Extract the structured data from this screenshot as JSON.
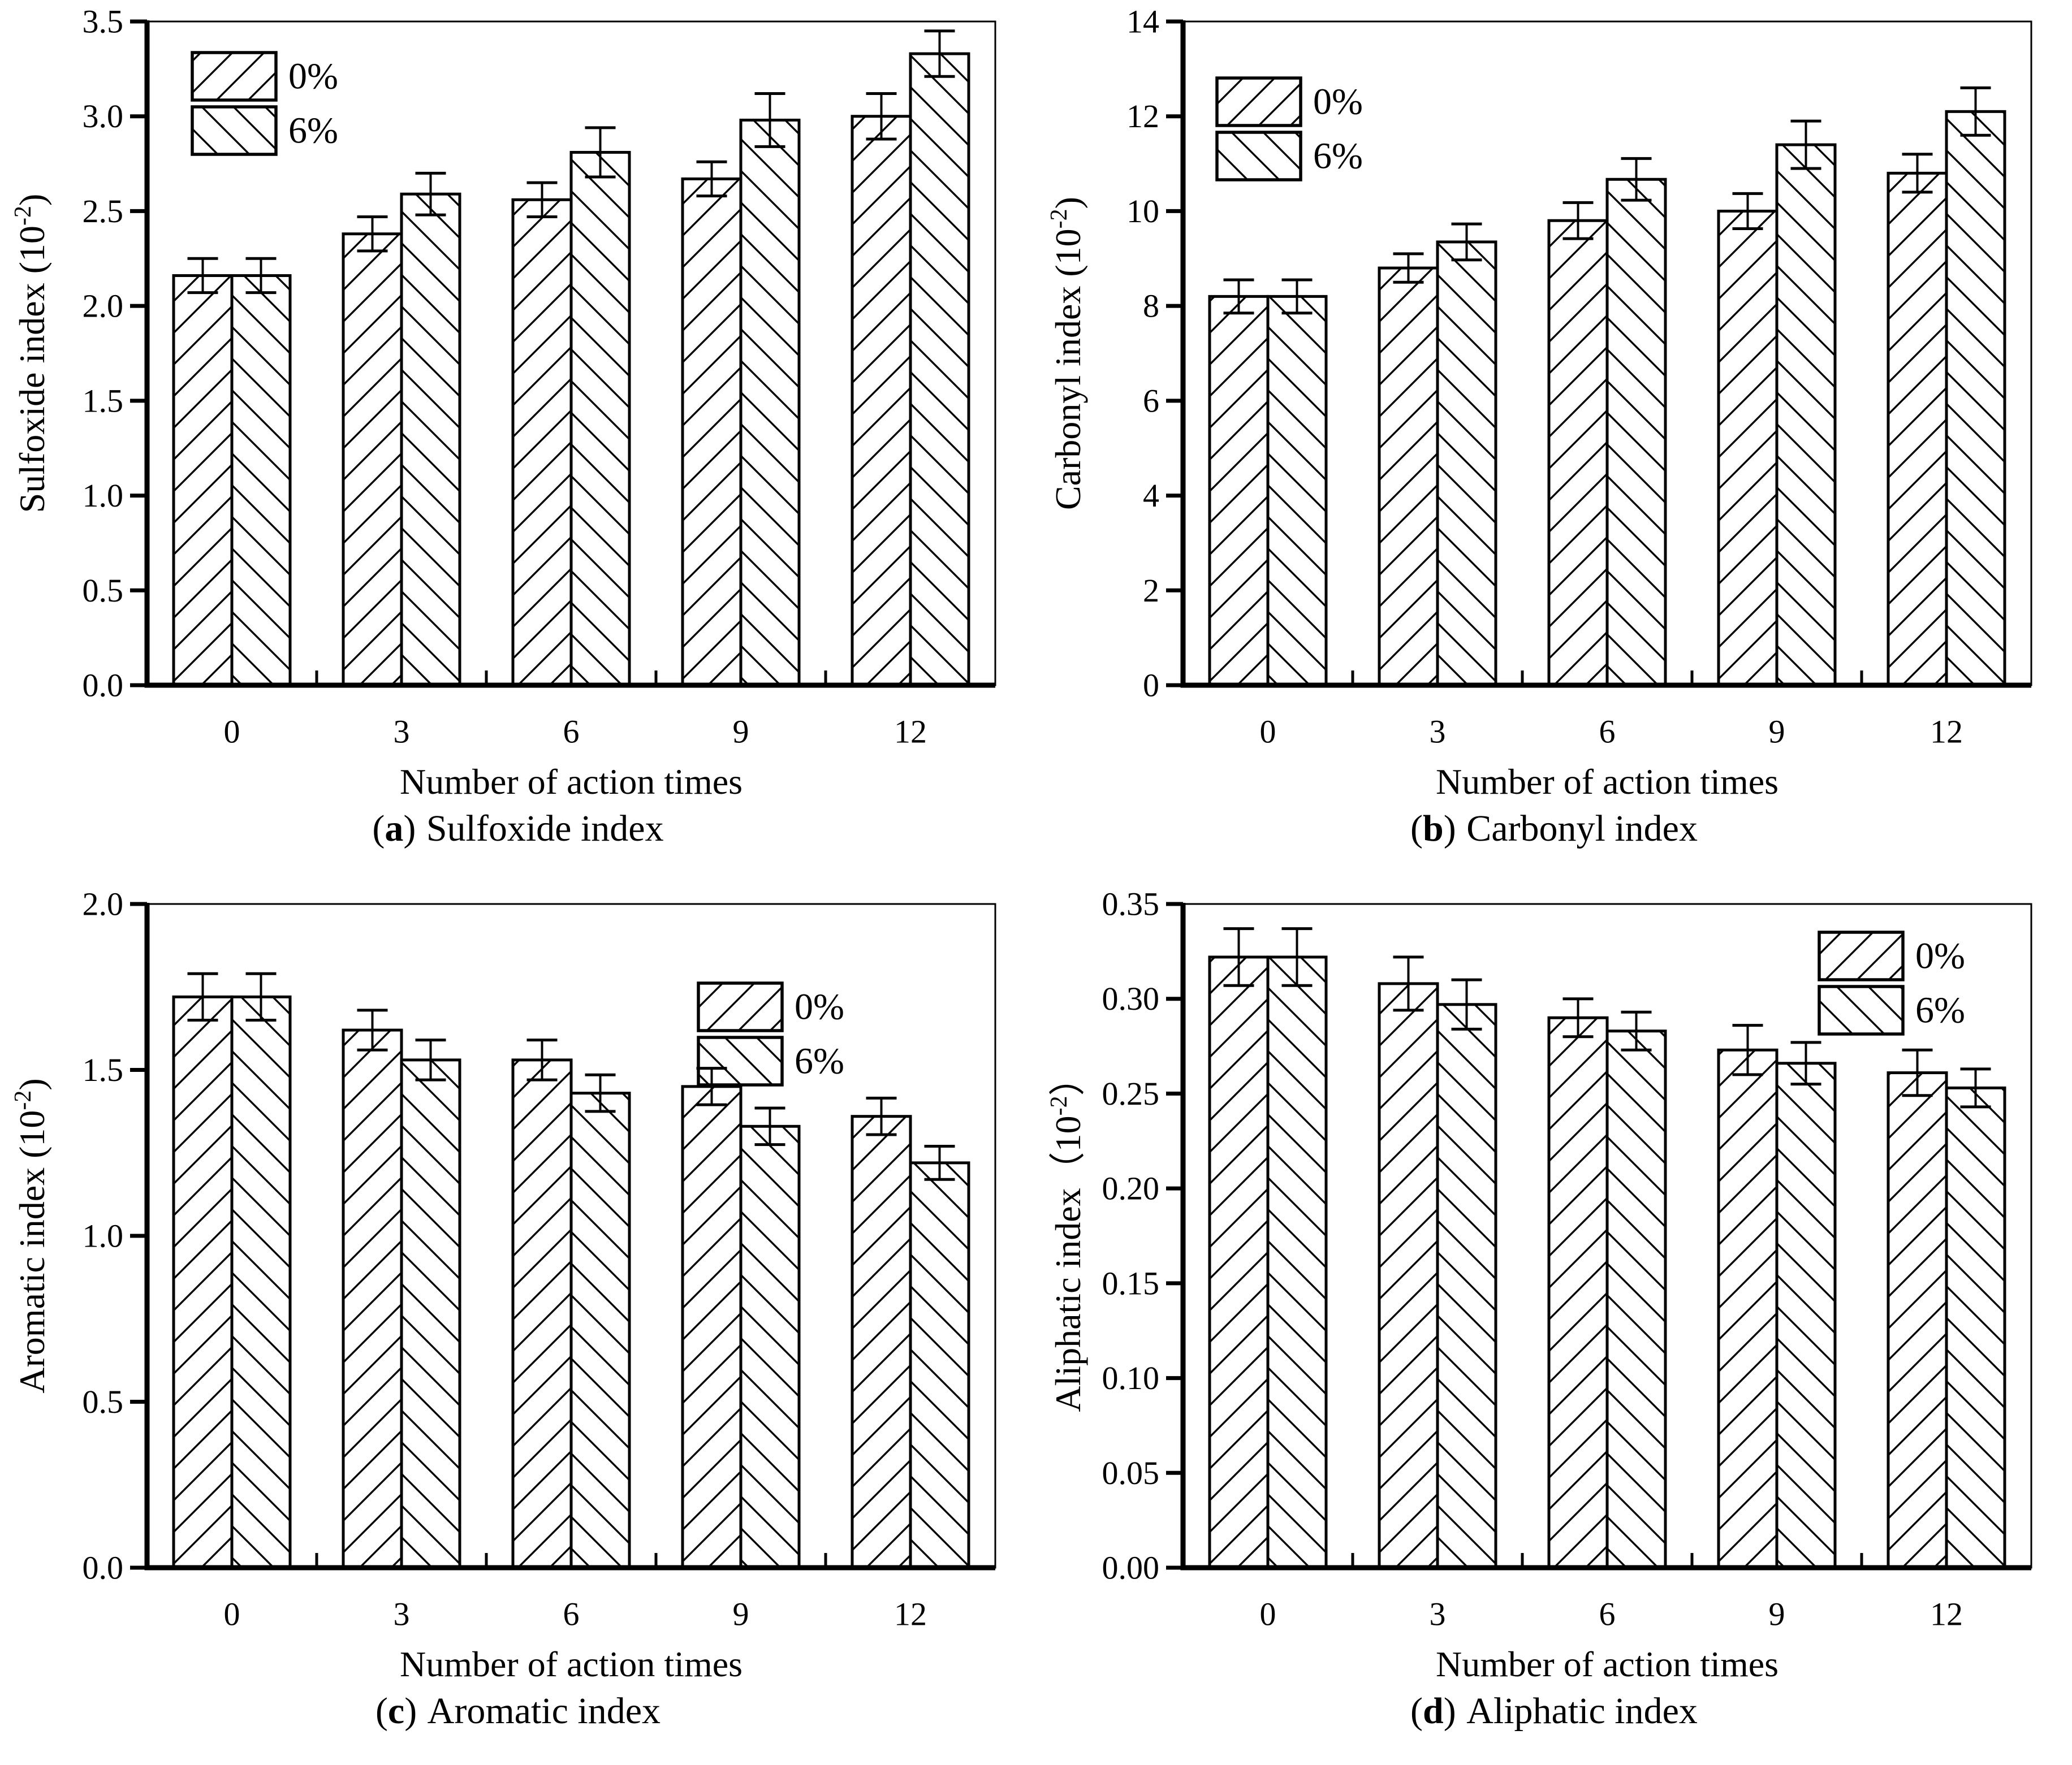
{
  "page": {
    "background": "#ffffff",
    "ink_color": "#000000"
  },
  "chart_data": [
    {
      "id": "a",
      "type": "bar",
      "caption_open": "(",
      "caption_letter": "a",
      "caption_close": ")",
      "caption_title": "Sulfoxide index",
      "xlabel": "Number of action times",
      "ylabel_prefix": "Sulfoxide index (10",
      "ylabel_sup": "-2",
      "ylabel_suffix": ")",
      "categories": [
        "0",
        "3",
        "6",
        "9",
        "12"
      ],
      "ylim": [
        0,
        3.5
      ],
      "ystep": 0.5,
      "ytick_decimals": 1,
      "grid": false,
      "legend_position": "top-left",
      "series": [
        {
          "name": "0%",
          "hatch": "forward-diagonal",
          "values": [
            2.16,
            2.38,
            2.56,
            2.67,
            3.0
          ],
          "errors": [
            0.09,
            0.09,
            0.09,
            0.09,
            0.12
          ]
        },
        {
          "name": "6%",
          "hatch": "backward-diagonal",
          "values": [
            2.16,
            2.59,
            2.81,
            2.98,
            3.33
          ],
          "errors": [
            0.09,
            0.11,
            0.13,
            0.14,
            0.12
          ]
        }
      ]
    },
    {
      "id": "b",
      "type": "bar",
      "caption_open": "(",
      "caption_letter": "b",
      "caption_close": ")",
      "caption_title": "Carbonyl index",
      "xlabel": "Number of action times",
      "ylabel_prefix": "Carbonyl index (10",
      "ylabel_sup": "-2",
      "ylabel_suffix": ")",
      "categories": [
        "0",
        "3",
        "6",
        "9",
        "12"
      ],
      "ylim": [
        0,
        14
      ],
      "ystep": 2,
      "ytick_decimals": 0,
      "grid": false,
      "legend_position": "top-left",
      "series": [
        {
          "name": "0%",
          "hatch": "forward-diagonal",
          "values": [
            8.2,
            8.8,
            9.8,
            10.0,
            10.8
          ],
          "errors": [
            0.35,
            0.3,
            0.38,
            0.37,
            0.4
          ]
        },
        {
          "name": "6%",
          "hatch": "backward-diagonal",
          "values": [
            8.2,
            9.35,
            10.67,
            11.4,
            12.1
          ],
          "errors": [
            0.35,
            0.38,
            0.44,
            0.5,
            0.5
          ]
        }
      ]
    },
    {
      "id": "c",
      "type": "bar",
      "caption_open": "(",
      "caption_letter": "c",
      "caption_close": ")",
      "caption_title": "Aromatic index",
      "xlabel": "Number of action times",
      "ylabel_prefix": "Aromatic index (10",
      "ylabel_sup": "-2",
      "ylabel_suffix": ")",
      "categories": [
        "0",
        "3",
        "6",
        "9",
        "12"
      ],
      "ylim": [
        0,
        2.0
      ],
      "ystep": 0.5,
      "ytick_decimals": 1,
      "grid": false,
      "legend_position": "top-center-right",
      "series": [
        {
          "name": "0%",
          "hatch": "forward-diagonal",
          "values": [
            1.72,
            1.62,
            1.53,
            1.45,
            1.36
          ],
          "errors": [
            0.07,
            0.06,
            0.06,
            0.055,
            0.055
          ]
        },
        {
          "name": "6%",
          "hatch": "backward-diagonal",
          "values": [
            1.72,
            1.53,
            1.43,
            1.33,
            1.22
          ],
          "errors": [
            0.07,
            0.06,
            0.055,
            0.055,
            0.05
          ]
        }
      ]
    },
    {
      "id": "d",
      "type": "bar",
      "caption_open": "(",
      "caption_letter": "d",
      "caption_close": ")",
      "caption_title": "Aliphatic index",
      "xlabel": "Number of action times",
      "ylabel_prefix": "Aliphatic index（10",
      "ylabel_sup": "-2",
      "ylabel_suffix": "）",
      "categories": [
        "0",
        "3",
        "6",
        "9",
        "12"
      ],
      "ylim": [
        0,
        0.35
      ],
      "ystep": 0.05,
      "ytick_decimals": 2,
      "grid": false,
      "legend_position": "top-right",
      "series": [
        {
          "name": "0%",
          "hatch": "forward-diagonal",
          "values": [
            0.322,
            0.308,
            0.29,
            0.273,
            0.261
          ],
          "errors": [
            0.015,
            0.014,
            0.01,
            0.013,
            0.012
          ]
        },
        {
          "name": "6%",
          "hatch": "backward-diagonal",
          "values": [
            0.322,
            0.297,
            0.283,
            0.266,
            0.253
          ],
          "errors": [
            0.015,
            0.013,
            0.01,
            0.011,
            0.01
          ]
        }
      ]
    }
  ]
}
